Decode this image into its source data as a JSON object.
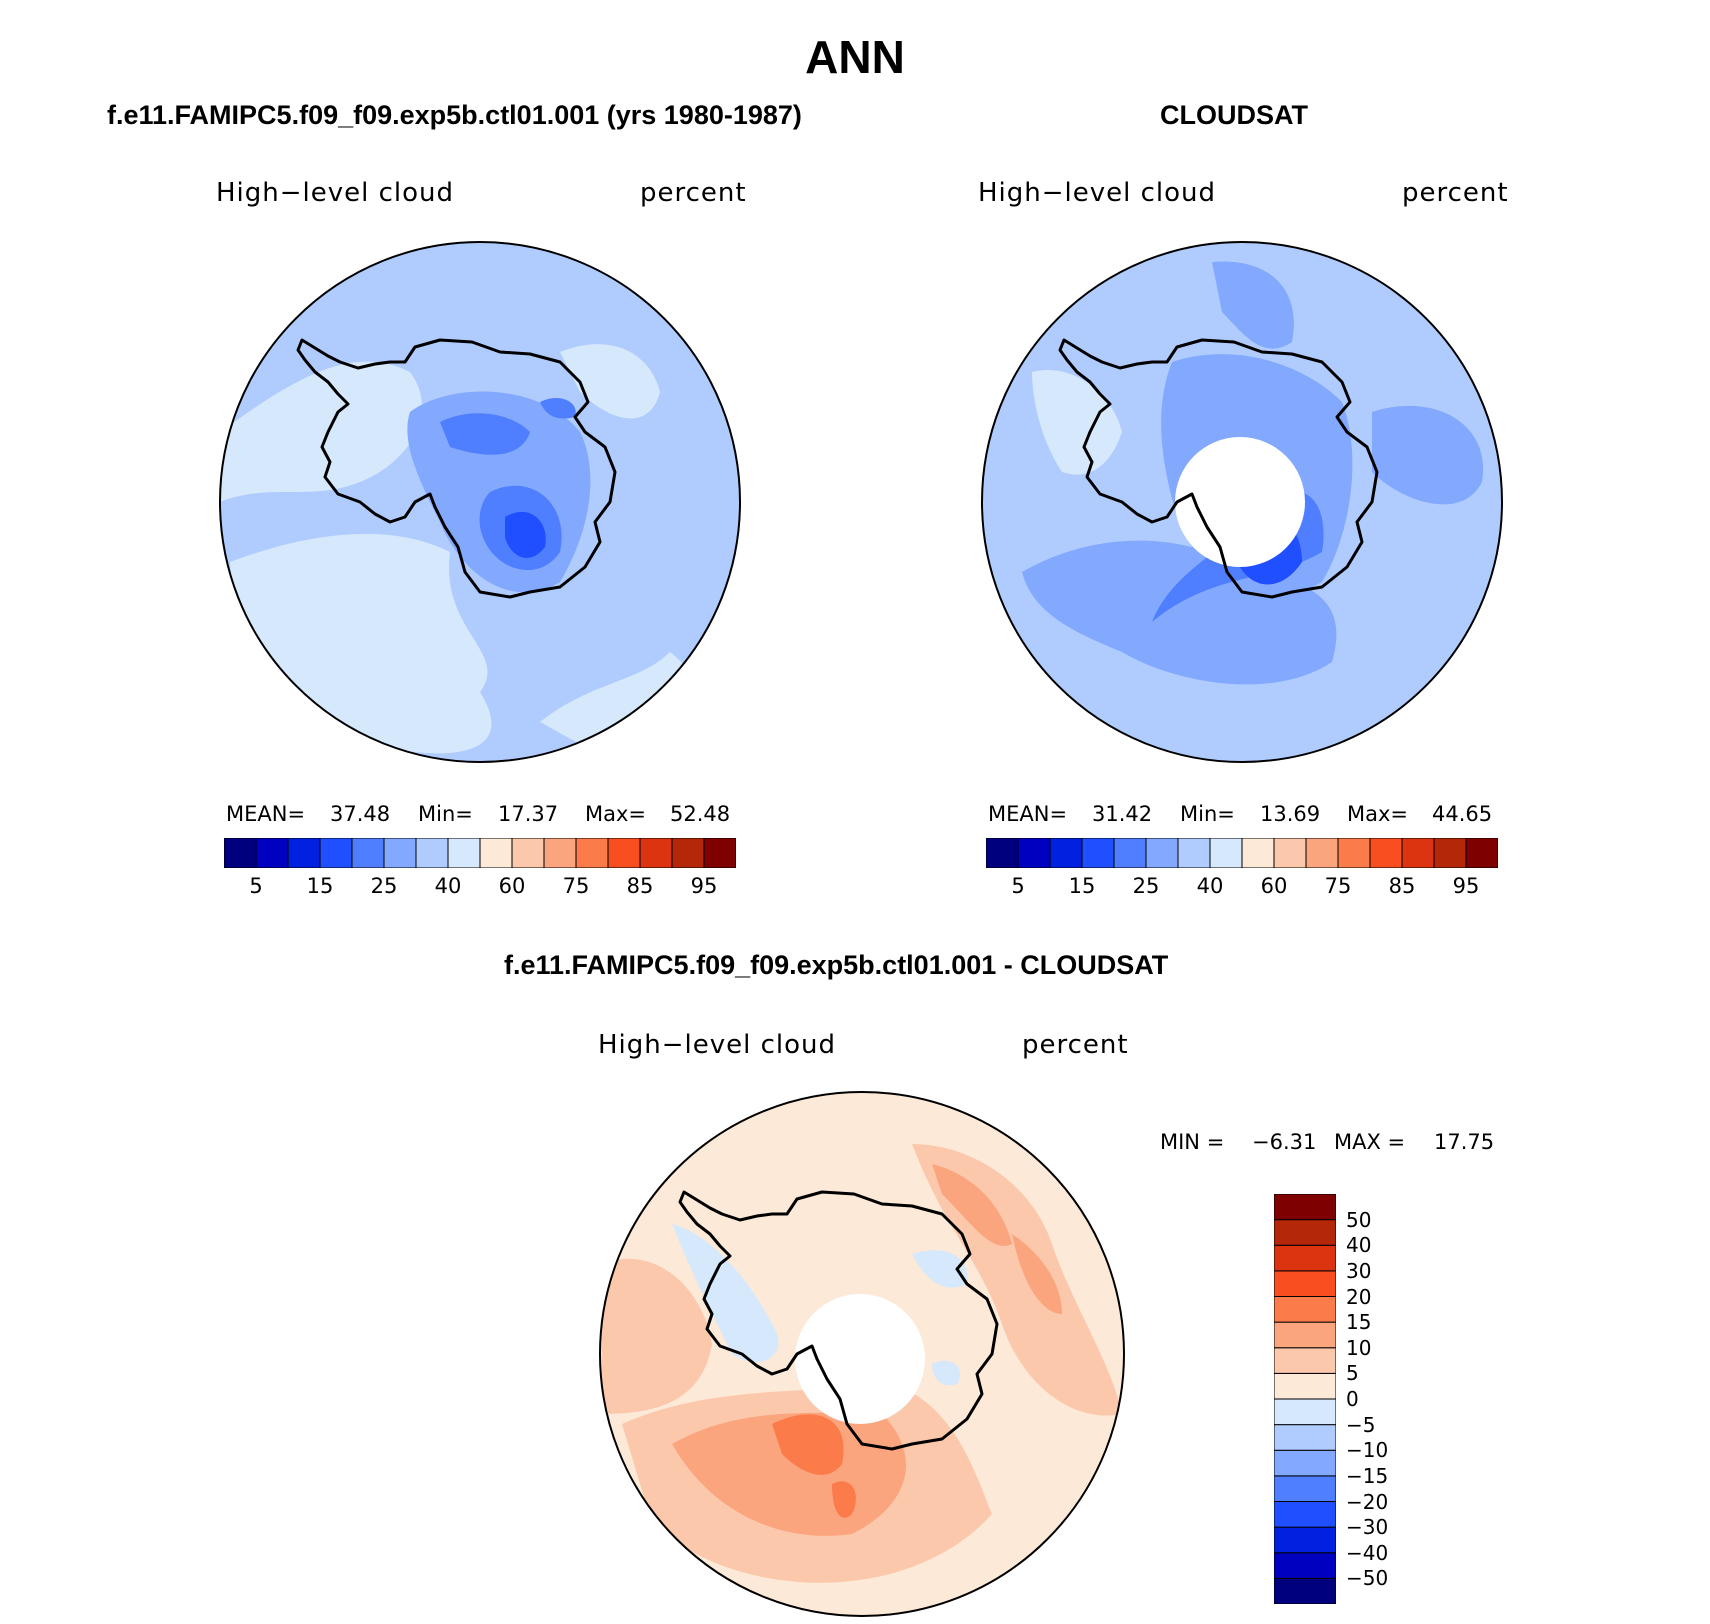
{
  "title": "ANN",
  "panels": {
    "model": {
      "title": "f.e11.FAMIPC5.f09_f09.exp5b.ctl01.001 (yrs 1980-1987)",
      "variable": "High−level cloud",
      "units": "percent",
      "stats": {
        "mean_label": "MEAN=",
        "mean": "37.48",
        "min_label": "Min=",
        "min": "17.37",
        "max_label": "Max=",
        "max": "52.48"
      }
    },
    "obs": {
      "title": "CLOUDSAT",
      "variable": "High−level cloud",
      "units": "percent",
      "stats": {
        "mean_label": "MEAN=",
        "mean": "31.42",
        "min_label": "Min=",
        "min": "13.69",
        "max_label": "Max=",
        "max": "44.65"
      }
    },
    "diff": {
      "title": "f.e11.FAMIPC5.f09_f09.exp5b.ctl01.001 - CLOUDSAT",
      "variable": "High−level cloud",
      "units": "percent",
      "stats": {
        "min_label": "MIN =",
        "min": "−6.31",
        "max_label": "MAX =",
        "max": "17.75"
      }
    }
  },
  "colorbar_abs": {
    "colors": [
      "#00007f",
      "#0000c0",
      "#0022e0",
      "#1f4fff",
      "#4f7fff",
      "#83a9ff",
      "#b0ccff",
      "#d6e8fb",
      "#fde9d7",
      "#fcc8ac",
      "#fba57f",
      "#fb7b4a",
      "#f94f20",
      "#dc3410",
      "#b42708",
      "#7f0000"
    ],
    "labels": [
      "5",
      "15",
      "25",
      "40",
      "60",
      "75",
      "85",
      "95"
    ]
  },
  "colorbar_diff": {
    "colors": [
      "#00007f",
      "#0000c0",
      "#0022e0",
      "#1f4fff",
      "#4f7fff",
      "#83a9ff",
      "#b0ccff",
      "#d6e8fb",
      "#fde9d7",
      "#fcc8ac",
      "#fba57f",
      "#fb7b4a",
      "#f94f20",
      "#dc3410",
      "#b42708",
      "#7f0000"
    ],
    "labels": [
      "−50",
      "−40",
      "−30",
      "−20",
      "−15",
      "−10",
      "−5",
      "0",
      "5",
      "10",
      "15",
      "20",
      "30",
      "40",
      "50"
    ]
  },
  "colors": {
    "abs_bg_model": "#d6e8fb",
    "abs_mid": "#b0ccff",
    "abs_dark": "#83a9ff",
    "abs_darker": "#4f7fff",
    "abs_darkest": "#1f4fff",
    "diff_bg": "#fde9d7",
    "diff_mid": "#fcc8ac",
    "diff_dark": "#fba57f",
    "diff_darker": "#fb7b4a"
  }
}
